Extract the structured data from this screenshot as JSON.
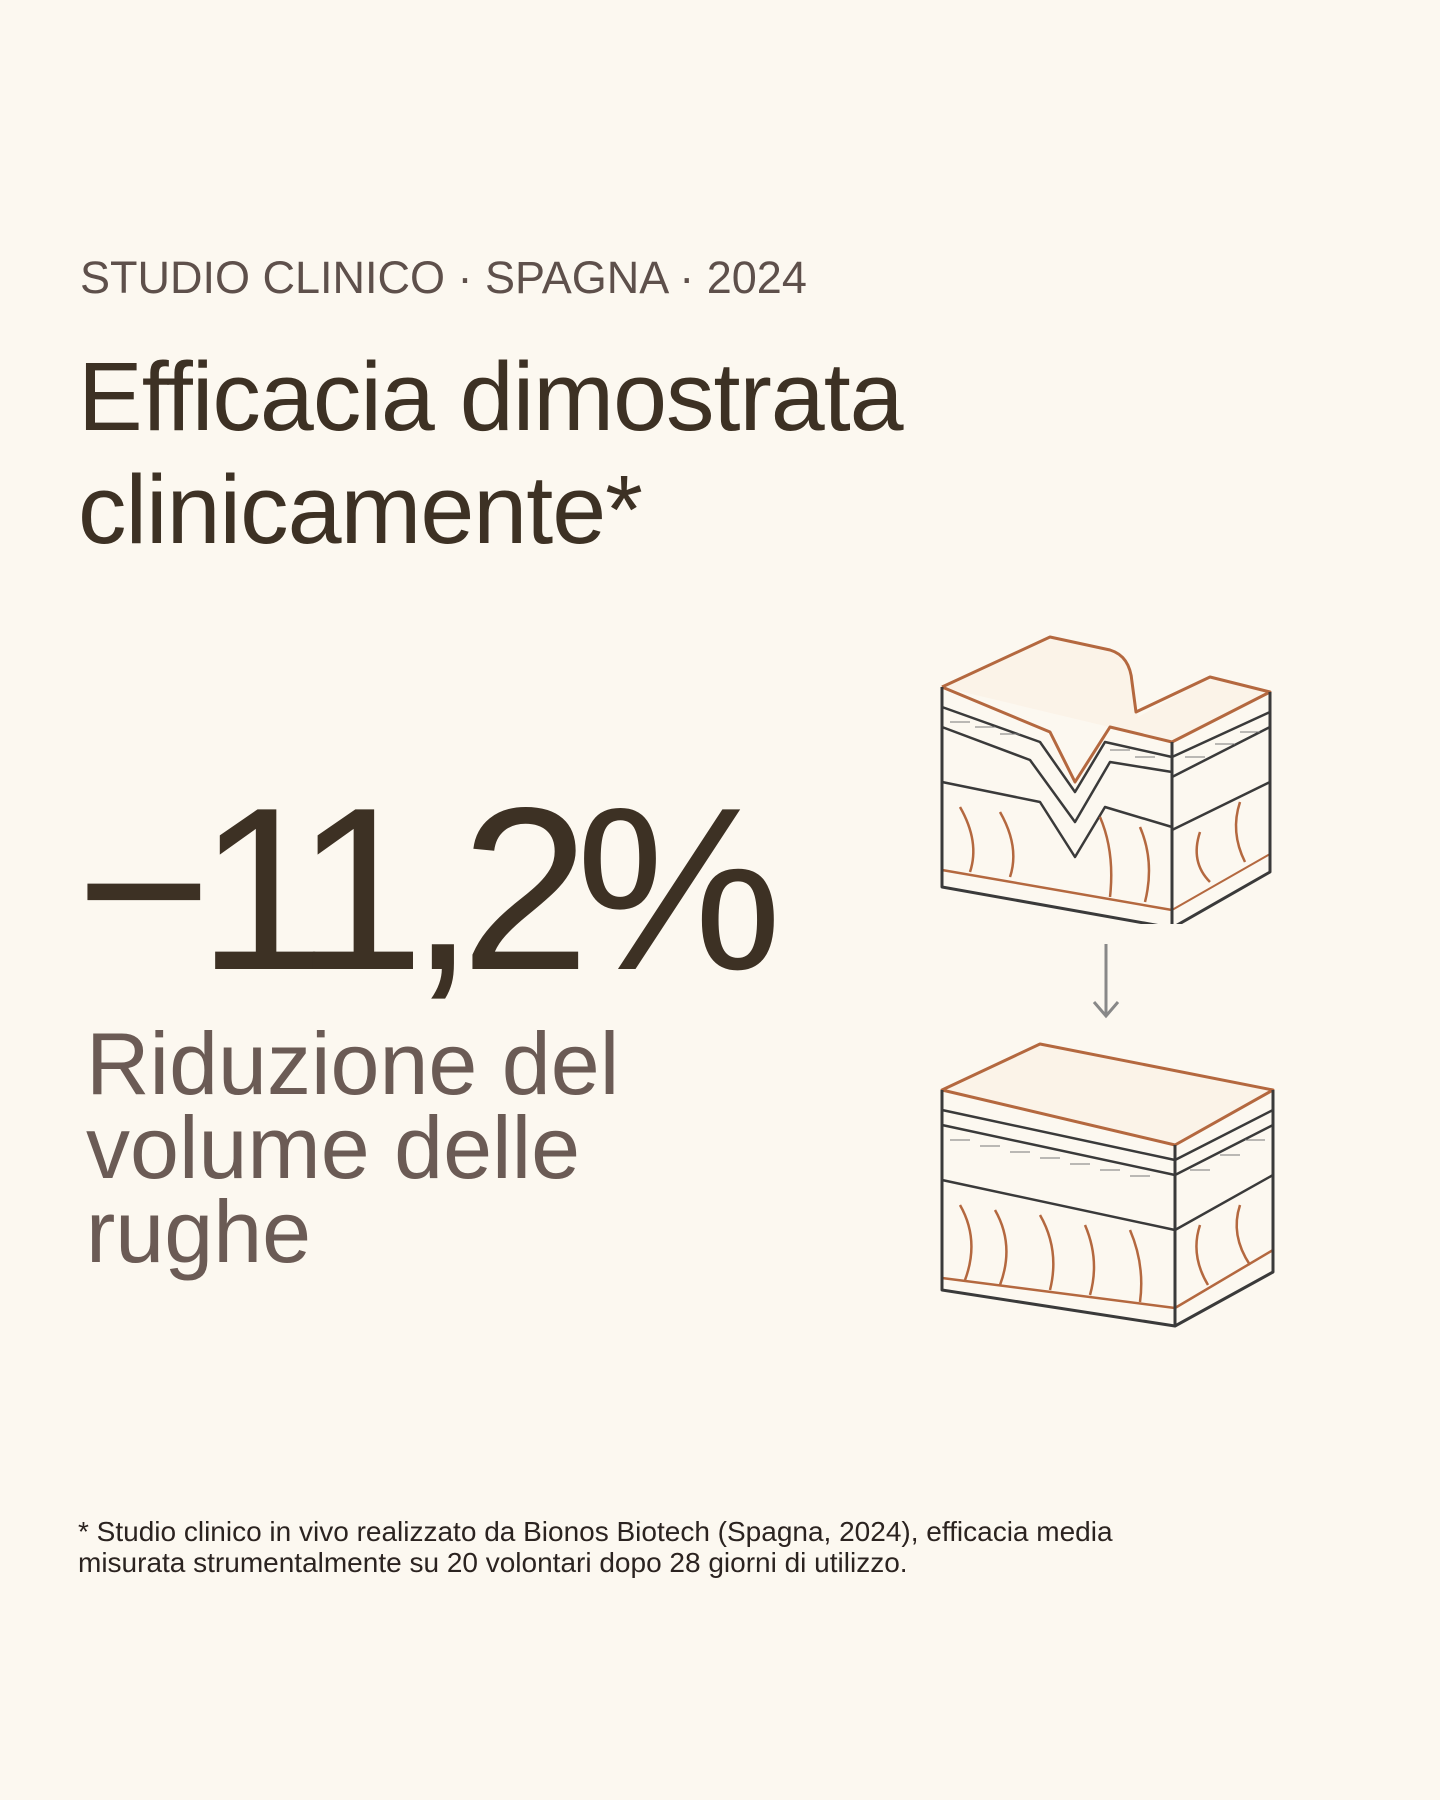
{
  "eyebrow": "STUDIO CLINICO · SPAGNA · 2024",
  "title": {
    "line1": "Efficacia dimostrata",
    "line2": "clinicamente*"
  },
  "stat": {
    "value": "−11,2%",
    "label_line1": "Riduzione del",
    "label_line2": "volume delle",
    "label_line3": "rughe"
  },
  "illustration": {
    "before": "skin-cross-section-wrinkle-icon",
    "arrow": "arrow-down-icon",
    "after": "skin-cross-section-smooth-icon"
  },
  "colors": {
    "background": "#fcf8f0",
    "text_dark": "#3d3124",
    "text_muted": "#6b5b55",
    "accent": "#b4683f",
    "outline": "#3a3a3a"
  },
  "footnote": {
    "line1": "* Studio clinico in vivo realizzato da Bionos Biotech (Spagna, 2024), efficacia media",
    "line2": "misurata strumentalmente su 20 volontari dopo 28 giorni di utilizzo."
  }
}
